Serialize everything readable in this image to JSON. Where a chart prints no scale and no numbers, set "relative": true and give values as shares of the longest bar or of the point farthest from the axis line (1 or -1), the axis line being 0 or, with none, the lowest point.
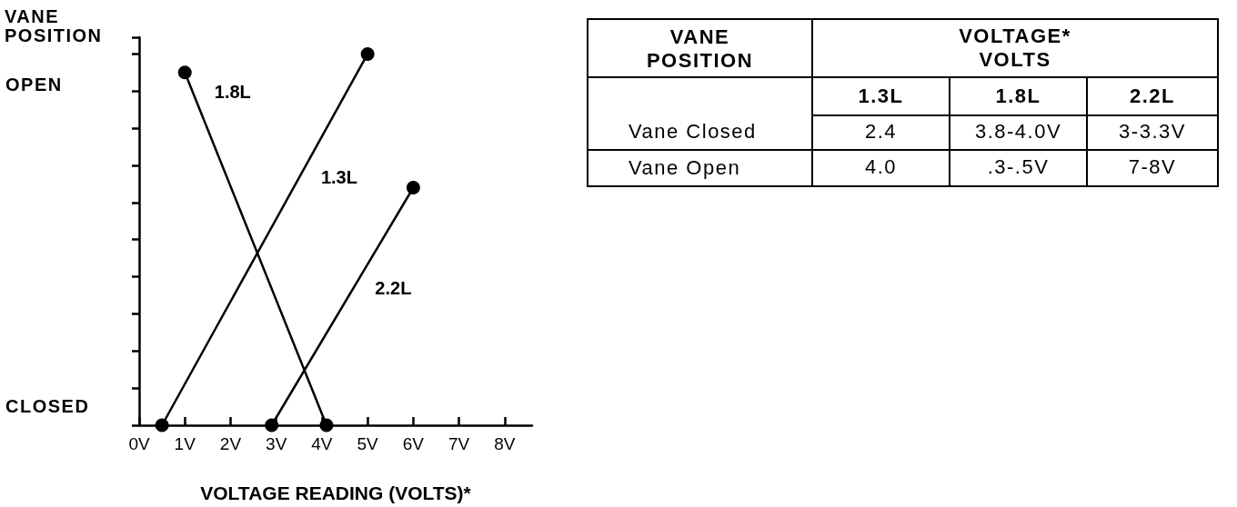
{
  "chart_data": [
    {
      "type": "line",
      "xlabel": "VOLTAGE READING (VOLTS)*",
      "ylabel": "VANE POSITION",
      "annotations": [
        "OPEN",
        "CLOSED"
      ],
      "relative": true,
      "xlim": [
        0,
        8.6
      ],
      "xticks": [
        {
          "value": 0,
          "label": "0V"
        },
        {
          "value": 1,
          "label": "1V"
        },
        {
          "value": 2,
          "label": "2V"
        },
        {
          "value": 3,
          "label": "3V"
        },
        {
          "value": 4,
          "label": "4V"
        },
        {
          "value": 5,
          "label": "5V"
        },
        {
          "value": 6,
          "label": "6V"
        },
        {
          "value": 7,
          "label": "7V"
        },
        {
          "value": 8,
          "label": "8V"
        }
      ],
      "marker": "circle",
      "line_style": "solid",
      "series": [
        {
          "name": "1.3L",
          "color": "#000000",
          "x": [
            0.5,
            5
          ],
          "values": [
            0,
            1
          ]
        },
        {
          "name": "1.8L",
          "color": "#000000",
          "x": [
            1,
            4.1
          ],
          "values": [
            0.95,
            0
          ]
        },
        {
          "name": "2.2L",
          "color": "#000000",
          "x": [
            2.9,
            6
          ],
          "values": [
            0,
            0.64
          ]
        }
      ]
    },
    {
      "type": "other",
      "ylabel": "VANE POSITION",
      "xlabel": "VOLTAGE* VOLTS",
      "categories": [
        "1.3L",
        "1.8L",
        "2.2L"
      ],
      "y_categories": [
        "Vane Closed",
        "Vane Open"
      ],
      "cell_labels": [
        [
          "2.4",
          "3.8-4.0V",
          "3-3.3V"
        ],
        [
          "4.0",
          ".3-.5V",
          "7-8V"
        ]
      ]
    }
  ]
}
